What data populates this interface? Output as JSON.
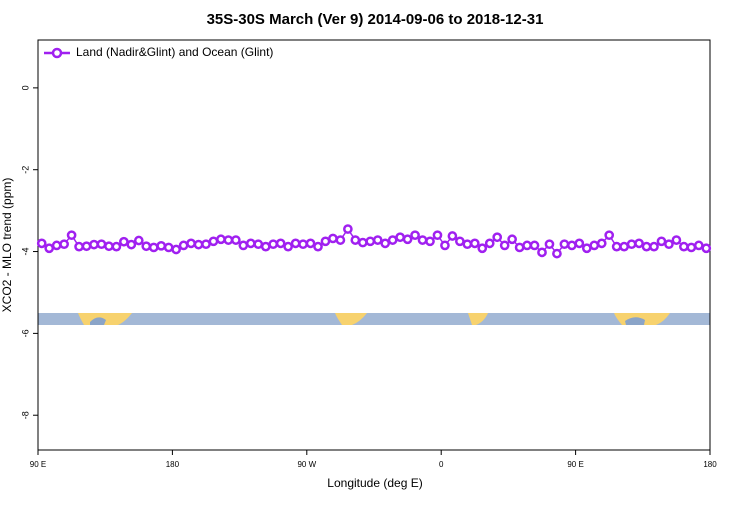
{
  "chart_data": {
    "type": "line",
    "title": "35S-30S March (Ver 9)   2014-09-06 to 2018-12-31",
    "x_label": "Longitude (deg E)",
    "y_label": "XCO2 - MLO trend (ppm)",
    "x": [
      92.5,
      97.5,
      102.5,
      107.5,
      112.5,
      117.5,
      122.5,
      127.5,
      132.5,
      137.5,
      142.5,
      147.5,
      152.5,
      157.5,
      162.5,
      167.5,
      172.5,
      177.5,
      182.5,
      187.5,
      192.5,
      197.5,
      202.5,
      207.5,
      212.5,
      217.5,
      222.5,
      227.5,
      232.5,
      237.5,
      242.5,
      247.5,
      252.5,
      257.5,
      262.5,
      267.5,
      272.5,
      277.5,
      282.5,
      287.5,
      292.5,
      297.5,
      302.5,
      307.5,
      312.5,
      317.5,
      322.5,
      327.5,
      332.5,
      337.5,
      342.5,
      347.5,
      352.5,
      357.5,
      362.5,
      367.5,
      372.5,
      377.5,
      382.5,
      387.5,
      392.5,
      397.5,
      402.5,
      407.5,
      412.5,
      417.5,
      422.5,
      427.5,
      432.5,
      437.5,
      442.5,
      447.5,
      452.5,
      457.5,
      462.5,
      467.5,
      472.5,
      477.5,
      482.5,
      487.5,
      492.5,
      497.5,
      502.5,
      507.5,
      512.5,
      517.5,
      522.5,
      527.5,
      532.5,
      537.5
    ],
    "series": [
      {
        "name": "Land (Nadir&Glint) and Ocean (Glint)",
        "color": "#a020f0",
        "values": [
          -3.8,
          -3.92,
          -3.85,
          -3.82,
          -3.6,
          -3.88,
          -3.87,
          -3.83,
          -3.82,
          -3.87,
          -3.88,
          -3.76,
          -3.83,
          -3.73,
          -3.87,
          -3.9,
          -3.86,
          -3.9,
          -3.95,
          -3.85,
          -3.8,
          -3.83,
          -3.82,
          -3.75,
          -3.7,
          -3.72,
          -3.72,
          -3.85,
          -3.8,
          -3.82,
          -3.88,
          -3.82,
          -3.8,
          -3.88,
          -3.8,
          -3.82,
          -3.8,
          -3.88,
          -3.75,
          -3.68,
          -3.72,
          -3.45,
          -3.72,
          -3.78,
          -3.75,
          -3.72,
          -3.8,
          -3.72,
          -3.65,
          -3.7,
          -3.6,
          -3.72,
          -3.75,
          -3.6,
          -3.85,
          -3.62,
          -3.75,
          -3.82,
          -3.8,
          -3.92,
          -3.8,
          -3.65,
          -3.85,
          -3.7,
          -3.9,
          -3.85,
          -3.85,
          -4.02,
          -3.82,
          -4.05,
          -3.82,
          -3.85,
          -3.8,
          -3.92,
          -3.85,
          -3.8,
          -3.6,
          -3.88,
          -3.88,
          -3.82,
          -3.8,
          -3.88,
          -3.88,
          -3.75,
          -3.82,
          -3.72,
          -3.88,
          -3.9,
          -3.85,
          -3.92
        ]
      }
    ],
    "xlim": [
      90,
      540
    ],
    "xticks": [
      {
        "value": 90,
        "label": "90 E"
      },
      180,
      {
        "value": 270,
        "label": "90 W"
      },
      {
        "value": 360,
        "label": "0"
      },
      {
        "value": 450,
        "label": "90 E"
      },
      {
        "value": 540,
        "label": "180"
      }
    ],
    "ylim": [
      -8.85,
      1.17
    ],
    "yticks": [
      0,
      -2,
      -4,
      -6,
      -8
    ],
    "legend": "top-left"
  }
}
